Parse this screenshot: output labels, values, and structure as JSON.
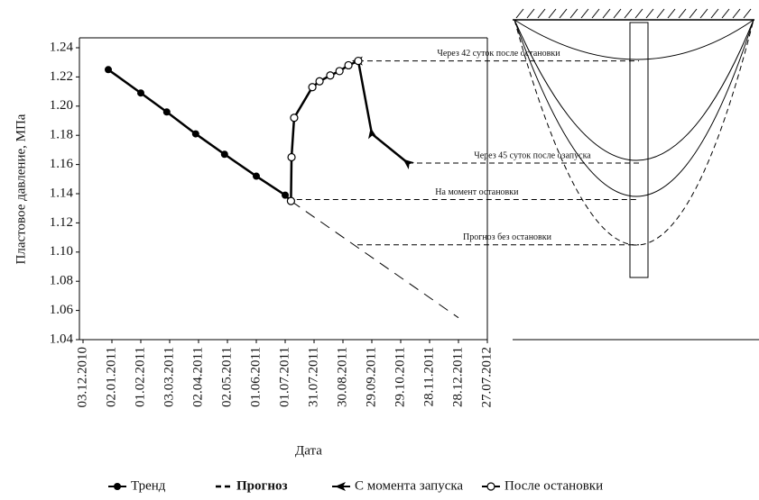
{
  "chart_data": {
    "type": "line",
    "ylabel": "Пластовое давление, МПа",
    "xlabel": "Дата",
    "xlim": [
      0,
      14
    ],
    "xticks": [
      {
        "value": 0,
        "label": "03.12.2010"
      },
      {
        "value": 1,
        "label": "02.01.2011"
      },
      {
        "value": 2,
        "label": "01.02.2011"
      },
      {
        "value": 3,
        "label": "03.03.2011"
      },
      {
        "value": 4,
        "label": "02.04.2011"
      },
      {
        "value": 5,
        "label": "02.05.2011"
      },
      {
        "value": 6,
        "label": "01.06.2011"
      },
      {
        "value": 7,
        "label": "01.07.2011"
      },
      {
        "value": 8,
        "label": "31.07.2011"
      },
      {
        "value": 9,
        "label": "30.08.2011"
      },
      {
        "value": 10,
        "label": "29.09.2011"
      },
      {
        "value": 11,
        "label": "29.10.2011"
      },
      {
        "value": 12,
        "label": "28.11.2011"
      },
      {
        "value": 13,
        "label": "28.12.2011"
      },
      {
        "value": 14,
        "label": "27.07.2012"
      }
    ],
    "ylim": [
      1.04,
      1.24
    ],
    "yticks": [
      1.04,
      1.06,
      1.08,
      {
        "value": 1.1,
        "label": "1.10"
      },
      1.12,
      1.14,
      1.16,
      1.18,
      {
        "value": 1.2,
        "label": "1.20"
      },
      1.22,
      1.24
    ],
    "series": [
      {
        "name": "Тренд",
        "color": "#000000",
        "marker": "filled-circle",
        "x": [
          0.875,
          2.0,
          2.9,
          3.9,
          4.9,
          6.0,
          7.0,
          7.2
        ],
        "values": [
          1.225,
          1.209,
          1.196,
          1.181,
          1.167,
          1.152,
          1.139,
          1.135
        ]
      },
      {
        "name": "Прогноз",
        "color": "#000000",
        "marker": "dash",
        "x": [
          7.2,
          13.0
        ],
        "values": [
          1.135,
          1.055
        ]
      },
      {
        "name": "С момента запуска",
        "color": "#000000",
        "marker": "arrow",
        "x": [
          9.53,
          10.0,
          11.25
        ],
        "values": [
          1.231,
          1.181,
          1.161
        ]
      },
      {
        "name": "После остановки",
        "color": "#000000",
        "marker": "open-circle",
        "x": [
          7.2,
          7.22,
          7.31,
          7.94,
          8.19,
          8.56,
          8.88,
          9.19,
          9.53
        ],
        "values": [
          1.135,
          1.165,
          1.192,
          1.213,
          1.217,
          1.221,
          1.224,
          1.228,
          1.231
        ]
      }
    ],
    "annotations": [
      {
        "text": "Через 42 суток после остановки",
        "x": 9.53,
        "y": 1.231
      },
      {
        "text": "Через 45 суток после озапуска",
        "x": 11.25,
        "y": 1.161
      },
      {
        "text": "На момент остановки",
        "x": 7.4,
        "y": 1.136
      },
      {
        "text": "Прогноз без остановки",
        "x": 9.5,
        "y": 1.105
      }
    ]
  }
}
